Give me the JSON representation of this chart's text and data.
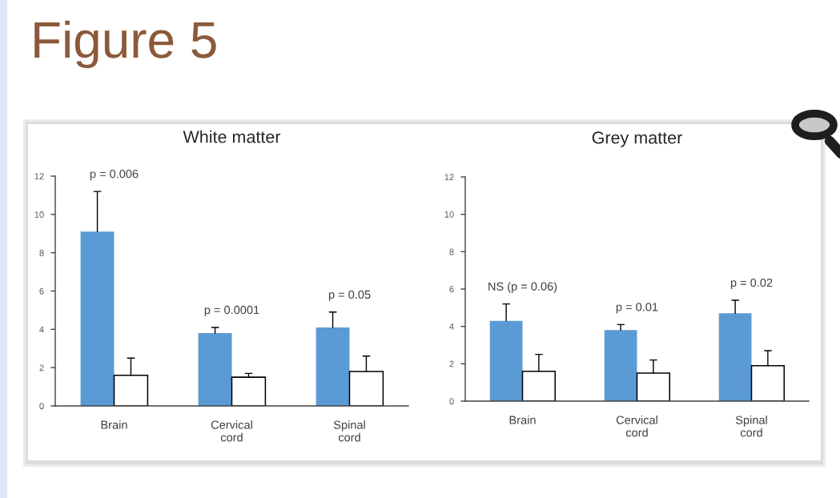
{
  "chart_data": [
    {
      "type": "other",
      "title": "Figure 5"
    },
    {
      "type": "bar",
      "title": "White matter",
      "categories": [
        "Brain",
        "Cervical cord",
        "Spinal cord"
      ],
      "series": [
        {
          "color": "#5b9bd5",
          "values": [
            9.1,
            3.8,
            4.1
          ],
          "errors": [
            [
              9.1,
              11.2
            ],
            [
              3.8,
              4.1
            ],
            [
              4.1,
              4.9
            ]
          ]
        },
        {
          "color": "#ffffff",
          "values": [
            1.6,
            1.5,
            1.8
          ],
          "errors": [
            [
              1.6,
              2.5
            ],
            [
              1.5,
              1.7
            ],
            [
              1.8,
              2.6
            ]
          ]
        }
      ],
      "ylim": [
        0,
        12
      ],
      "yticks": [
        0,
        2,
        4,
        6,
        8,
        10,
        12
      ],
      "annotations": [
        "p = 0.006",
        "p = 0.0001",
        "p = 0.05"
      ]
    },
    {
      "type": "bar",
      "title": "Grey matter",
      "categories": [
        "Brain",
        "Cervical cord",
        "Spinal cord"
      ],
      "series": [
        {
          "color": "#5b9bd5",
          "values": [
            4.3,
            3.8,
            4.7
          ],
          "errors": [
            [
              4.3,
              5.2
            ],
            [
              3.8,
              4.1
            ],
            [
              4.7,
              5.4
            ]
          ]
        },
        {
          "color": "#ffffff",
          "values": [
            1.6,
            1.5,
            1.9
          ],
          "errors": [
            [
              1.6,
              2.5
            ],
            [
              1.5,
              2.2
            ],
            [
              1.9,
              2.7
            ]
          ]
        }
      ],
      "ylim": [
        0,
        12
      ],
      "yticks": [
        0,
        2,
        4,
        6,
        8,
        10,
        12
      ],
      "annotations": [
        "NS (p = 0.06)",
        "p = 0.01",
        "p = 0.02"
      ]
    }
  ]
}
